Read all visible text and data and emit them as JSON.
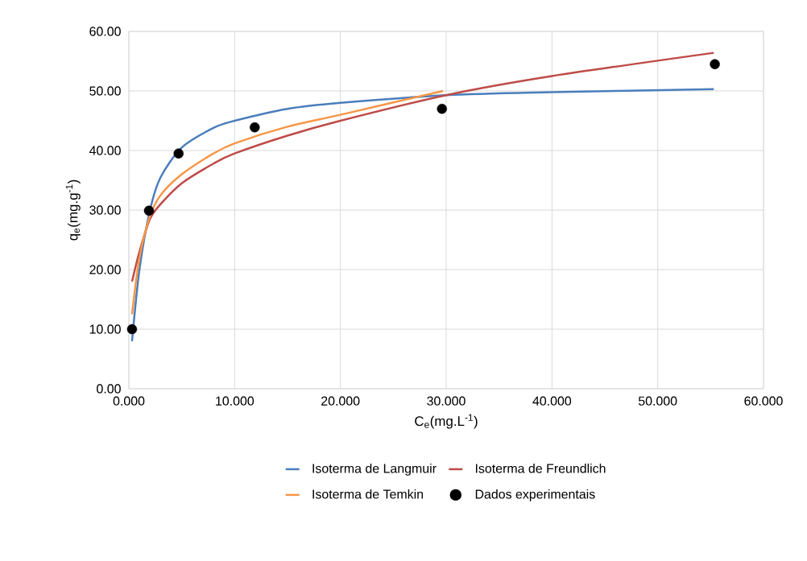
{
  "chart_data": {
    "type": "line",
    "xlabel": "C$_{e}$(mg.L$^{-1}$)",
    "ylabel": "q$_{e}$(mg.g$^{-1}$)",
    "xlim": [
      0,
      60
    ],
    "ylim": [
      0,
      60
    ],
    "xticks": [
      {
        "value": 0,
        "label": "0.000"
      },
      {
        "value": 10,
        "label": "10.000"
      },
      {
        "value": 20,
        "label": "20.000"
      },
      {
        "value": 30,
        "label": "30.000"
      },
      {
        "value": 40,
        "label": "40.000"
      },
      {
        "value": 50,
        "label": "50.000"
      },
      {
        "value": 60,
        "label": "60.000"
      }
    ],
    "yticks": [
      {
        "value": 0,
        "label": "0.00"
      },
      {
        "value": 10,
        "label": "10.00"
      },
      {
        "value": 20,
        "label": "20.00"
      },
      {
        "value": 30,
        "label": "30.00"
      },
      {
        "value": 40,
        "label": "40.00"
      },
      {
        "value": 50,
        "label": "50.00"
      },
      {
        "value": 60,
        "label": "60.00"
      }
    ],
    "grid": true,
    "legend": "bottom",
    "series": [
      {
        "name": "Isoterma de Langmuir",
        "color": "#4a7ebb",
        "marker": "none",
        "x": [
          0.3,
          1,
          2,
          3,
          5,
          8,
          10,
          15,
          20,
          30,
          40,
          55.3
        ],
        "values": [
          8,
          20,
          30,
          35.5,
          40.5,
          43.8,
          45,
          47,
          48,
          49.3,
          49.8,
          50.3
        ]
      },
      {
        "name": "Isoterma de Freundlich",
        "color": "#be4b48",
        "marker": "none",
        "x": [
          0.3,
          1,
          2,
          3,
          5,
          8,
          10,
          15,
          20,
          30,
          40,
          55.3
        ],
        "values": [
          18,
          23,
          28.5,
          31,
          34.5,
          37.8,
          39.5,
          42.5,
          45,
          49.3,
          52.5,
          56.4
        ]
      },
      {
        "name": "Isoterma de Temkin",
        "color": "#f79646",
        "marker": "none",
        "x": [
          0.3,
          1,
          2,
          3,
          5,
          8,
          10,
          15,
          20,
          29.7
        ],
        "values": [
          12.5,
          22,
          29,
          32.5,
          36,
          39.5,
          41.2,
          44,
          46,
          50
        ]
      },
      {
        "name": "Dados experimentais",
        "color": "#000000",
        "type": "scatter",
        "marker": "circle",
        "x": [
          0.3,
          1.9,
          4.7,
          11.9,
          29.6,
          55.4
        ],
        "values": [
          10,
          29.9,
          39.5,
          43.9,
          47.0,
          54.5
        ]
      }
    ]
  }
}
